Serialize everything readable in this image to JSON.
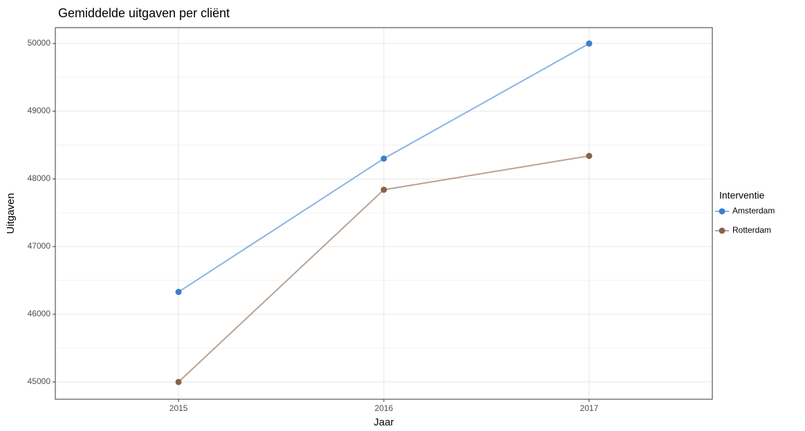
{
  "chart_data": {
    "type": "line",
    "title": "Gemiddelde uitgaven per cliënt",
    "x_label": "Jaar",
    "y_label": "Uitgaven",
    "x": [
      2015,
      2016,
      2017
    ],
    "xlim": [
      2014.4,
      2017.6
    ],
    "xticks": [
      2015,
      2016,
      2017
    ],
    "ylim": [
      44745,
      50235
    ],
    "yticks": [
      45000,
      46000,
      47000,
      48000,
      49000,
      50000
    ],
    "grid": true,
    "legend_title": "Interventie",
    "legend_position": "right",
    "series": [
      {
        "name": "Amsterdam",
        "color": "#3a80d0",
        "values": [
          46330,
          48300,
          50000
        ]
      },
      {
        "name": "Rotterdam",
        "color": "#8a6248",
        "values": [
          45000,
          47840,
          48340
        ]
      }
    ]
  }
}
